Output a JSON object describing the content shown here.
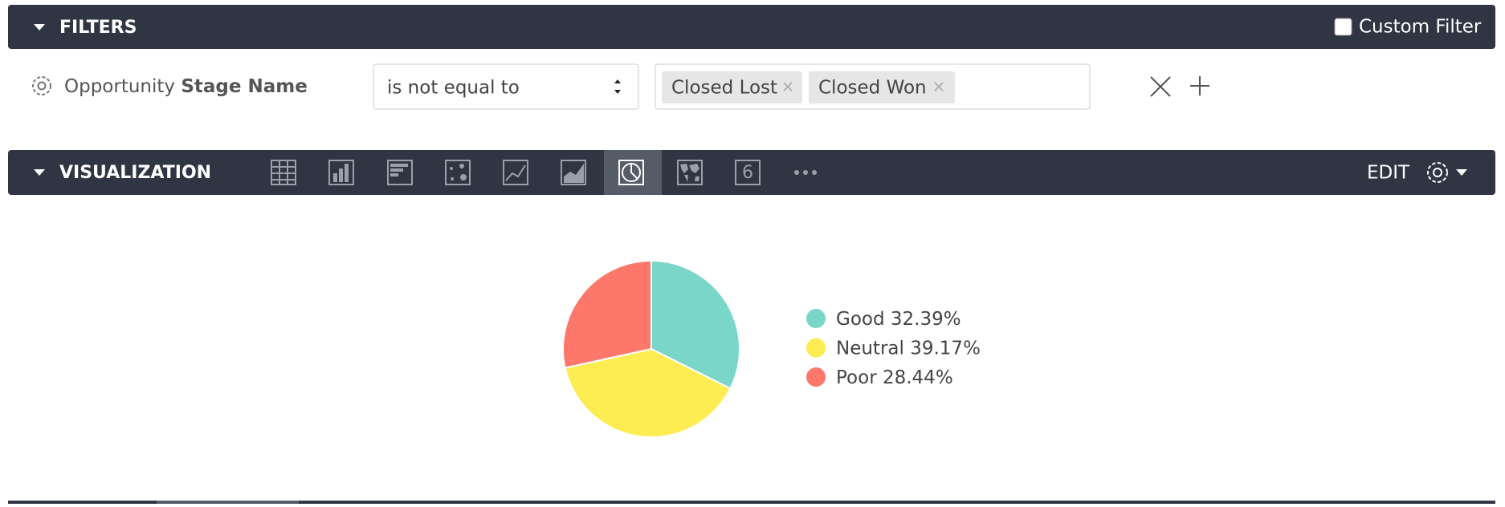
{
  "filters": {
    "title": "FILTERS",
    "custom_filter": "Custom Filter",
    "row": {
      "field_prefix": "Opportunity",
      "field_name": "Stage Name",
      "operator": "is not equal to",
      "tags": [
        "Closed Lost",
        "Closed Won"
      ]
    }
  },
  "visualization": {
    "title": "VISUALIZATION",
    "single_value_icon": "6",
    "edit": "EDIT"
  },
  "chart_data": {
    "type": "pie",
    "categories": [
      "Good",
      "Neutral",
      "Poor"
    ],
    "values": [
      32.39,
      39.17,
      28.44
    ],
    "value_labels": [
      "32.39%",
      "39.17%",
      "28.44%"
    ],
    "colors": [
      "#79d6c8",
      "#fded52",
      "#fd786b"
    ]
  }
}
